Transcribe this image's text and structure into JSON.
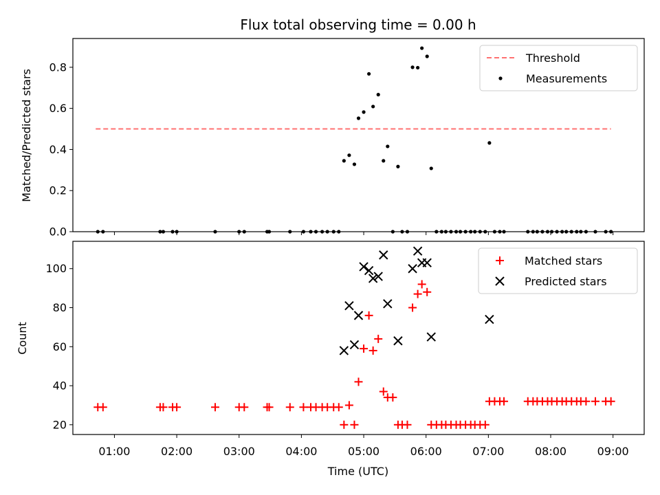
{
  "chart_data": [
    {
      "type": "scatter",
      "title": "Flux total observing time = 0.00 h",
      "xlabel": "",
      "ylabel": "Matched/Predicted stars",
      "xlim": [
        "00:20",
        "09:30"
      ],
      "ylim": [
        0,
        0.94
      ],
      "yticks": [
        "0.0",
        "0.2",
        "0.4",
        "0.6",
        "0.8"
      ],
      "legend": {
        "placement": "top-right",
        "entries": [
          "Threshold",
          "Measurements"
        ]
      },
      "threshold": {
        "name": "Threshold",
        "y": 0.5,
        "x_start": "00:42",
        "x_end": "08:58",
        "color": "#ff7070",
        "style": "dashed"
      },
      "series": [
        {
          "name": "Measurements",
          "color": "#000000",
          "marker": "dot",
          "points": [
            [
              "00:44",
              0
            ],
            [
              "00:49",
              0
            ],
            [
              "01:44",
              0
            ],
            [
              "01:47",
              0
            ],
            [
              "01:56",
              0
            ],
            [
              "02:00",
              0
            ],
            [
              "02:37",
              0
            ],
            [
              "03:00",
              0
            ],
            [
              "03:05",
              0
            ],
            [
              "03:27",
              0
            ],
            [
              "03:29",
              0
            ],
            [
              "03:49",
              0
            ],
            [
              "04:02",
              0
            ],
            [
              "04:09",
              0
            ],
            [
              "04:14",
              0
            ],
            [
              "04:20",
              0
            ],
            [
              "04:25",
              0
            ],
            [
              "04:31",
              0
            ],
            [
              "04:36",
              0
            ],
            [
              "04:41",
              0.345
            ],
            [
              "04:46",
              0.372
            ],
            [
              "04:51",
              0.328
            ],
            [
              "04:55",
              0.552
            ],
            [
              "05:00",
              0.582
            ],
            [
              "05:05",
              0.768
            ],
            [
              "05:09",
              0.609
            ],
            [
              "05:14",
              0.667
            ],
            [
              "05:19",
              0.345
            ],
            [
              "05:23",
              0.415
            ],
            [
              "05:28",
              0
            ],
            [
              "05:33",
              0.317
            ],
            [
              "05:37",
              0
            ],
            [
              "05:42",
              0
            ],
            [
              "05:47",
              0.8
            ],
            [
              "05:52",
              0.798
            ],
            [
              "05:56",
              0.893
            ],
            [
              "06:01",
              0.853
            ],
            [
              "06:05",
              0.308
            ],
            [
              "06:10",
              0
            ],
            [
              "06:15",
              0
            ],
            [
              "06:19",
              0
            ],
            [
              "06:24",
              0
            ],
            [
              "06:29",
              0
            ],
            [
              "06:33",
              0
            ],
            [
              "06:38",
              0
            ],
            [
              "06:43",
              0
            ],
            [
              "06:47",
              0
            ],
            [
              "06:52",
              0
            ],
            [
              "06:57",
              0
            ],
            [
              "07:01",
              0.432
            ],
            [
              "07:06",
              0
            ],
            [
              "07:11",
              0
            ],
            [
              "07:15",
              0
            ],
            [
              "07:38",
              0
            ],
            [
              "07:43",
              0
            ],
            [
              "07:47",
              0
            ],
            [
              "07:52",
              0
            ],
            [
              "07:57",
              0
            ],
            [
              "08:01",
              0
            ],
            [
              "08:06",
              0
            ],
            [
              "08:11",
              0
            ],
            [
              "08:15",
              0
            ],
            [
              "08:20",
              0
            ],
            [
              "08:25",
              0
            ],
            [
              "08:29",
              0
            ],
            [
              "08:34",
              0
            ],
            [
              "08:43",
              0
            ],
            [
              "08:53",
              0
            ],
            [
              "08:58",
              0
            ]
          ]
        }
      ]
    },
    {
      "type": "scatter",
      "title": "",
      "xlabel": "Time (UTC)",
      "ylabel": "Count",
      "xlim": [
        "00:20",
        "09:30"
      ],
      "ylim": [
        15,
        114
      ],
      "yticks": [
        "20",
        "40",
        "60",
        "80",
        "100"
      ],
      "xticks": [
        "01:00",
        "02:00",
        "03:00",
        "04:00",
        "05:00",
        "06:00",
        "07:00",
        "08:00",
        "09:00"
      ],
      "legend": {
        "placement": "top-right",
        "entries": [
          "Matched stars",
          "Predicted stars"
        ]
      },
      "series": [
        {
          "name": "Matched stars",
          "color": "#ff0000",
          "marker": "plus",
          "points": [
            [
              "00:44",
              29
            ],
            [
              "00:49",
              29
            ],
            [
              "01:44",
              29
            ],
            [
              "01:47",
              29
            ],
            [
              "01:56",
              29
            ],
            [
              "02:00",
              29
            ],
            [
              "02:37",
              29
            ],
            [
              "03:00",
              29
            ],
            [
              "03:05",
              29
            ],
            [
              "03:27",
              29
            ],
            [
              "03:29",
              29
            ],
            [
              "03:49",
              29
            ],
            [
              "04:02",
              29
            ],
            [
              "04:09",
              29
            ],
            [
              "04:14",
              29
            ],
            [
              "04:20",
              29
            ],
            [
              "04:25",
              29
            ],
            [
              "04:31",
              29
            ],
            [
              "04:36",
              29
            ],
            [
              "04:41",
              20
            ],
            [
              "04:46",
              30
            ],
            [
              "04:51",
              20
            ],
            [
              "04:55",
              42
            ],
            [
              "05:00",
              59
            ],
            [
              "05:05",
              76
            ],
            [
              "05:09",
              58
            ],
            [
              "05:14",
              64
            ],
            [
              "05:19",
              37
            ],
            [
              "05:23",
              34
            ],
            [
              "05:28",
              34
            ],
            [
              "05:33",
              20
            ],
            [
              "05:37",
              20
            ],
            [
              "05:42",
              20
            ],
            [
              "05:47",
              80
            ],
            [
              "05:52",
              87
            ],
            [
              "05:56",
              92
            ],
            [
              "06:01",
              88
            ],
            [
              "06:05",
              20
            ],
            [
              "06:10",
              20
            ],
            [
              "06:15",
              20
            ],
            [
              "06:19",
              20
            ],
            [
              "06:24",
              20
            ],
            [
              "06:29",
              20
            ],
            [
              "06:33",
              20
            ],
            [
              "06:38",
              20
            ],
            [
              "06:43",
              20
            ],
            [
              "06:47",
              20
            ],
            [
              "06:52",
              20
            ],
            [
              "06:57",
              20
            ],
            [
              "07:01",
              32
            ],
            [
              "07:06",
              32
            ],
            [
              "07:11",
              32
            ],
            [
              "07:15",
              32
            ],
            [
              "07:38",
              32
            ],
            [
              "07:43",
              32
            ],
            [
              "07:47",
              32
            ],
            [
              "07:52",
              32
            ],
            [
              "07:57",
              32
            ],
            [
              "08:01",
              32
            ],
            [
              "08:06",
              32
            ],
            [
              "08:11",
              32
            ],
            [
              "08:15",
              32
            ],
            [
              "08:20",
              32
            ],
            [
              "08:25",
              32
            ],
            [
              "08:29",
              32
            ],
            [
              "08:34",
              32
            ],
            [
              "08:43",
              32
            ],
            [
              "08:53",
              32
            ],
            [
              "08:58",
              32
            ]
          ]
        },
        {
          "name": "Predicted stars",
          "color": "#000000",
          "marker": "x",
          "points": [
            [
              "04:41",
              58
            ],
            [
              "04:46",
              81
            ],
            [
              "04:51",
              61
            ],
            [
              "04:55",
              76
            ],
            [
              "05:00",
              101
            ],
            [
              "05:05",
              99
            ],
            [
              "05:09",
              95
            ],
            [
              "05:14",
              96
            ],
            [
              "05:19",
              107
            ],
            [
              "05:23",
              82
            ],
            [
              "05:33",
              63
            ],
            [
              "05:47",
              100
            ],
            [
              "05:52",
              109
            ],
            [
              "05:56",
              103
            ],
            [
              "06:01",
              103
            ],
            [
              "06:05",
              65
            ],
            [
              "07:01",
              74
            ]
          ]
        }
      ]
    }
  ]
}
